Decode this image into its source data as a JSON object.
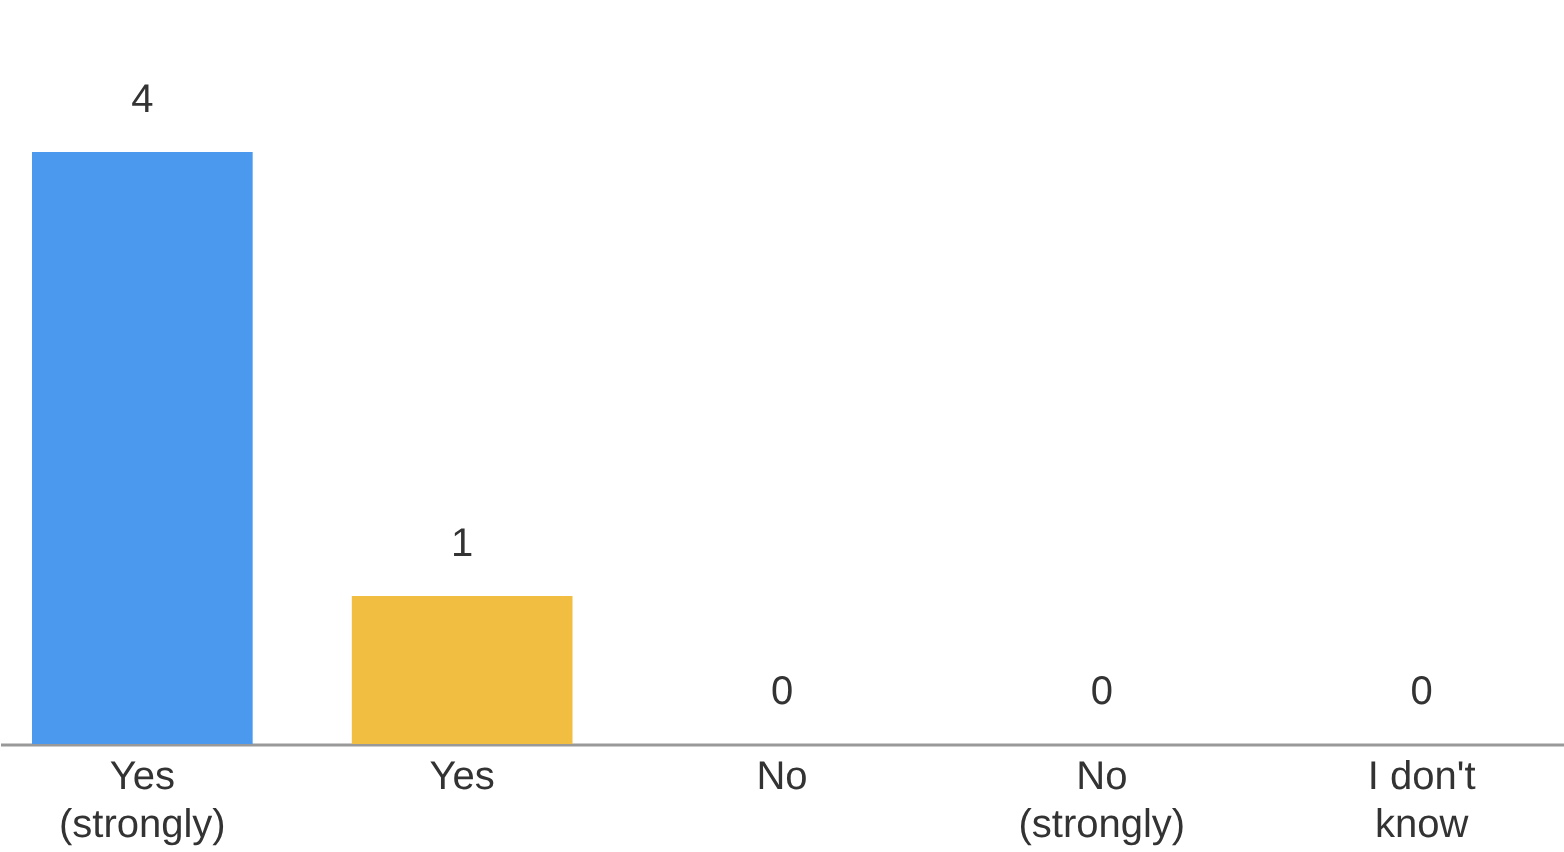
{
  "chart_data": {
    "type": "bar",
    "categories": [
      "Yes (strongly)",
      "Yes",
      "No",
      "No (strongly)",
      "I don't know"
    ],
    "values": [
      4,
      1,
      0,
      0,
      0
    ],
    "colors": [
      "#4a99ee",
      "#f2be42",
      "#e8453c",
      "#34a853",
      "#9e9e9e"
    ],
    "data_labels": true
  }
}
